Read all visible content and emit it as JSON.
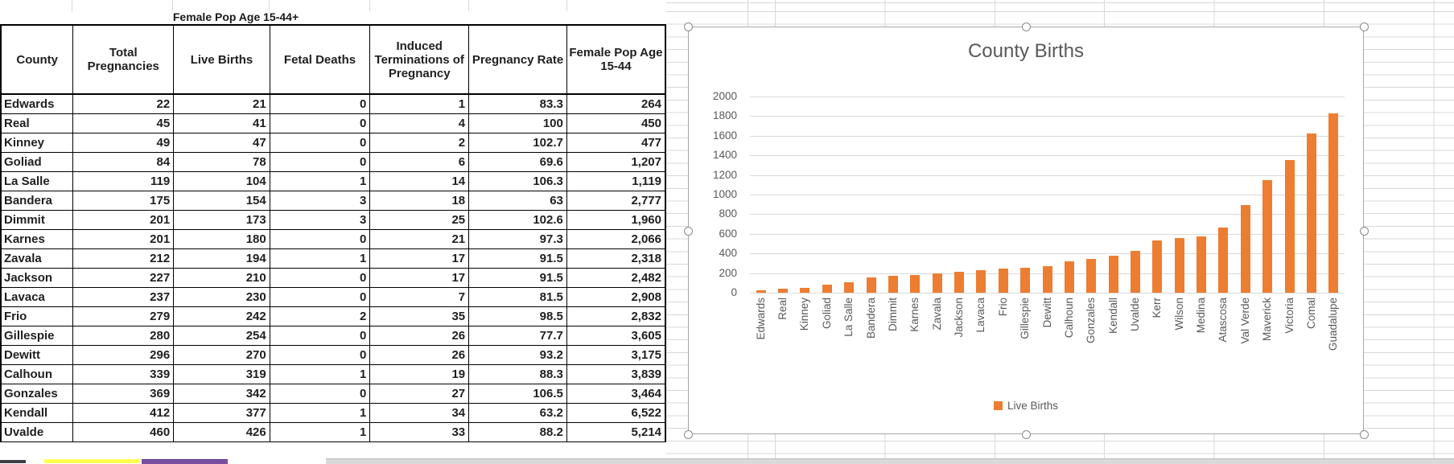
{
  "spreadsheet": {
    "table": {
      "title": "Female Pop Age 15-44+",
      "columns": [
        "County",
        "Total Pregnancies",
        "Live Births",
        "Fetal Deaths",
        "Induced Terminations of Pregnancy",
        "Pregnancy Rate",
        "Female Pop Age 15-44"
      ],
      "rows": [
        [
          "Edwards",
          "22",
          "21",
          "0",
          "1",
          "83.3",
          "264"
        ],
        [
          "Real",
          "45",
          "41",
          "0",
          "4",
          "100",
          "450"
        ],
        [
          "Kinney",
          "49",
          "47",
          "0",
          "2",
          "102.7",
          "477"
        ],
        [
          "Goliad",
          "84",
          "78",
          "0",
          "6",
          "69.6",
          "1,207"
        ],
        [
          "La Salle",
          "119",
          "104",
          "1",
          "14",
          "106.3",
          "1,119"
        ],
        [
          "Bandera",
          "175",
          "154",
          "3",
          "18",
          "63",
          "2,777"
        ],
        [
          "Dimmit",
          "201",
          "173",
          "3",
          "25",
          "102.6",
          "1,960"
        ],
        [
          "Karnes",
          "201",
          "180",
          "0",
          "21",
          "97.3",
          "2,066"
        ],
        [
          "Zavala",
          "212",
          "194",
          "1",
          "17",
          "91.5",
          "2,318"
        ],
        [
          "Jackson",
          "227",
          "210",
          "0",
          "17",
          "91.5",
          "2,482"
        ],
        [
          "Lavaca",
          "237",
          "230",
          "0",
          "7",
          "81.5",
          "2,908"
        ],
        [
          "Frio",
          "279",
          "242",
          "2",
          "35",
          "98.5",
          "2,832"
        ],
        [
          "Gillespie",
          "280",
          "254",
          "0",
          "26",
          "77.7",
          "3,605"
        ],
        [
          "Dewitt",
          "296",
          "270",
          "0",
          "26",
          "93.2",
          "3,175"
        ],
        [
          "Calhoun",
          "339",
          "319",
          "1",
          "19",
          "88.3",
          "3,839"
        ],
        [
          "Gonzales",
          "369",
          "342",
          "0",
          "27",
          "106.5",
          "3,464"
        ],
        [
          "Kendall",
          "412",
          "377",
          "1",
          "34",
          "63.2",
          "6,522"
        ],
        [
          "Uvalde",
          "460",
          "426",
          "1",
          "33",
          "88.2",
          "5,214"
        ]
      ]
    },
    "fragment_colors": {
      "yellow_cell": "#ffff4d",
      "purple_cell": "#7a4fa0",
      "dark_cell": "#3e3e47",
      "gray_band": "#d9d9d9"
    }
  },
  "chart_data": {
    "type": "bar",
    "title": "County Births",
    "categories": [
      "Edwards",
      "Real",
      "Kinney",
      "Goliad",
      "La Salle",
      "Bandera",
      "Dimmit",
      "Karnes",
      "Zavala",
      "Jackson",
      "Lavaca",
      "Frio",
      "Gillespie",
      "Dewitt",
      "Calhoun",
      "Gonzales",
      "Kendall",
      "Uvalde",
      "Kerr",
      "Wilson",
      "Medina",
      "Atascosa",
      "Val Verde",
      "Maverick",
      "Victoria",
      "Comal",
      "Guadalupe"
    ],
    "series": [
      {
        "name": "Live Births",
        "values": [
          21,
          41,
          47,
          78,
          104,
          154,
          173,
          180,
          194,
          210,
          230,
          242,
          254,
          270,
          319,
          342,
          377,
          426,
          530,
          555,
          575,
          665,
          890,
          1150,
          1350,
          1620,
          1830
        ]
      }
    ],
    "xlabel": "",
    "ylabel": "",
    "ylim": [
      0,
      2000
    ],
    "ytick_step": 200,
    "yticks": [
      "0",
      "200",
      "400",
      "600",
      "800",
      "1000",
      "1200",
      "1400",
      "1600",
      "1800",
      "2000"
    ],
    "grid": true,
    "legend": [
      "Live Births"
    ],
    "legend_position": "bottom",
    "bar_color": "#ED7D31",
    "text_color": "#595959"
  }
}
